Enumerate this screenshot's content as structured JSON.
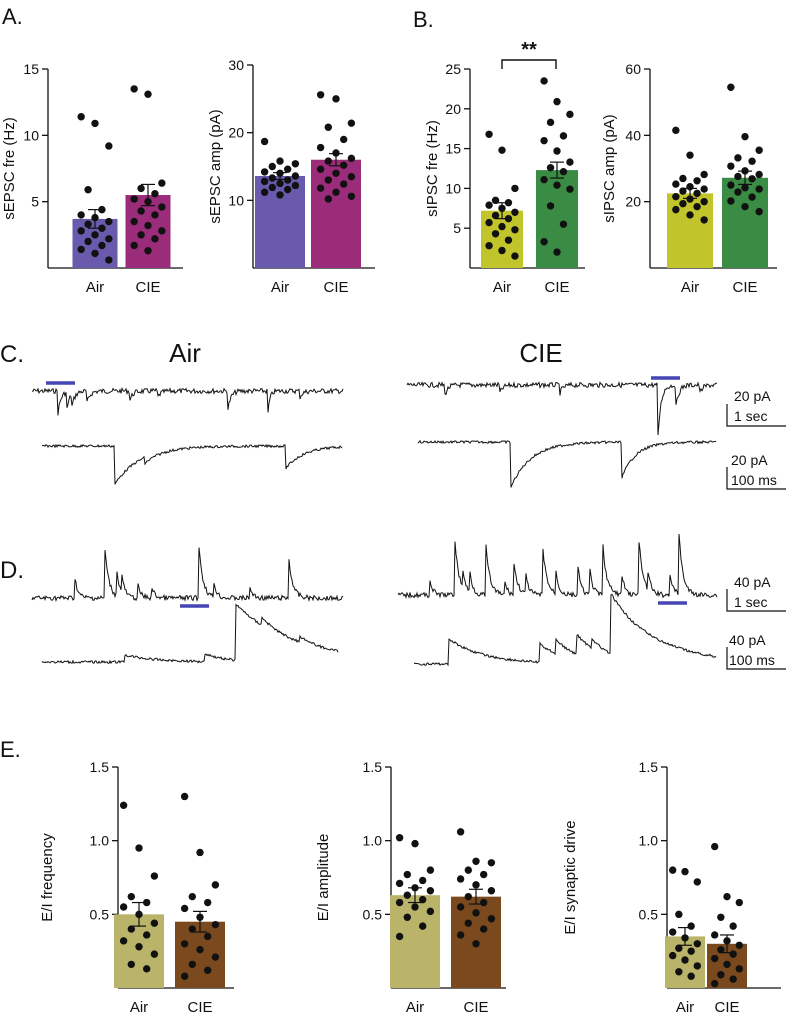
{
  "panel_labels": {
    "a": "A.",
    "b": "B.",
    "c": "C.",
    "d": "D.",
    "e": "E."
  },
  "colors": {
    "air_epsc": "#6a5aad",
    "cie_epsc": "#9b2c7a",
    "air_ipsc": "#c2c42b",
    "cie_ipsc": "#3a8c45",
    "air_ei": "#b9b46a",
    "cie_ei": "#7a4a1e",
    "trace_bar": "#4646b4"
  },
  "significance": {
    "label": "**"
  },
  "chart_data": [
    {
      "id": "a1",
      "type": "bar",
      "categories": [
        "Air",
        "CIE"
      ],
      "ylabel": "sEPSC fre (Hz)",
      "ylim": [
        0,
        15
      ],
      "ticks": [
        "5",
        "10",
        "15"
      ],
      "values": [
        3.7,
        5.5
      ],
      "sem": [
        0.7,
        0.8
      ],
      "points": [
        [
          11.4,
          10.9,
          9.2,
          5.9,
          4.4,
          4.0,
          3.8,
          3.5,
          3.3,
          3.0,
          2.8,
          2.5,
          2.2,
          2.0,
          1.7,
          1.4,
          1.1,
          0.6
        ],
        [
          13.5,
          13.1,
          6.4,
          6.0,
          5.6,
          5.2,
          5.0,
          4.6,
          4.3,
          4.0,
          3.5,
          3.2,
          2.8,
          2.5,
          2.2,
          1.7,
          1.3
        ]
      ]
    },
    {
      "id": "a2",
      "type": "bar",
      "categories": [
        "Air",
        "CIE"
      ],
      "ylabel": "sEPSC amp (pA)",
      "ylim": [
        0,
        30
      ],
      "ticks": [
        "10",
        "20",
        "30"
      ],
      "values": [
        13.6,
        16.0
      ],
      "sem": [
        0.5,
        0.9
      ],
      "points": [
        [
          18.7,
          15.8,
          15.4,
          15.0,
          14.6,
          14.2,
          14.0,
          13.6,
          13.3,
          13.0,
          12.8,
          12.5,
          12.2,
          11.9,
          11.6,
          11.2,
          10.8
        ],
        [
          25.6,
          25.0,
          21.4,
          20.8,
          19.0,
          17.8,
          17.0,
          16.2,
          15.8,
          15.2,
          14.6,
          14.0,
          13.5,
          13.0,
          12.4,
          11.8,
          11.2,
          10.6,
          10.2
        ]
      ]
    },
    {
      "id": "b1",
      "type": "bar",
      "categories": [
        "Air",
        "CIE"
      ],
      "ylabel": "sIPSC fre (Hz)",
      "ylim": [
        0,
        25
      ],
      "ticks": [
        "5",
        "10",
        "15",
        "20",
        "25"
      ],
      "values": [
        7.2,
        12.3
      ],
      "sem": [
        1.0,
        1.0
      ],
      "points": [
        [
          16.8,
          14.8,
          10.0,
          8.5,
          8.2,
          7.9,
          7.5,
          7.0,
          6.6,
          6.2,
          5.7,
          5.2,
          4.8,
          4.3,
          3.5,
          2.8,
          2.2,
          1.5
        ],
        [
          23.5,
          20.9,
          19.3,
          18.3,
          16.6,
          16.0,
          14.7,
          13.3,
          12.6,
          12.1,
          11.1,
          10.4,
          9.9,
          7.8,
          5.5,
          3.3,
          2.0
        ]
      ]
    },
    {
      "id": "b2",
      "type": "bar",
      "categories": [
        "Air",
        "CIE"
      ],
      "ylabel": "sIPSC amp (pA)",
      "ylim": [
        0,
        60
      ],
      "ticks": [
        "20",
        "40",
        "60"
      ],
      "values": [
        22.5,
        27.2
      ],
      "sem": [
        1.5,
        2.0
      ],
      "points": [
        [
          41.5,
          34.0,
          28.2,
          27.0,
          26.3,
          25.3,
          24.5,
          23.8,
          23.2,
          22.5,
          21.5,
          20.8,
          20.0,
          19.4,
          18.5,
          17.6,
          16.0,
          14.5
        ],
        [
          54.5,
          39.6,
          35.5,
          33.2,
          32.2,
          30.7,
          29.3,
          28.2,
          27.6,
          26.9,
          25.0,
          24.2,
          23.8,
          22.9,
          21.4,
          20.2,
          18.5,
          17.0
        ]
      ]
    },
    {
      "id": "e1",
      "type": "bar",
      "categories": [
        "Air",
        "CIE"
      ],
      "ylabel": "E/I frequency",
      "ylim": [
        0,
        1.5
      ],
      "ticks": [
        "0.5",
        "1.0",
        "1.5"
      ],
      "values": [
        0.5,
        0.45
      ],
      "sem": [
        0.08,
        0.07
      ],
      "points": [
        [
          1.24,
          0.95,
          0.76,
          0.62,
          0.58,
          0.55,
          0.5,
          0.44,
          0.4,
          0.36,
          0.32,
          0.28,
          0.23,
          0.16,
          0.13
        ],
        [
          1.3,
          0.92,
          0.7,
          0.62,
          0.58,
          0.54,
          0.48,
          0.43,
          0.4,
          0.35,
          0.3,
          0.26,
          0.21,
          0.16,
          0.12,
          0.08
        ]
      ]
    },
    {
      "id": "e2",
      "type": "bar",
      "categories": [
        "Air",
        "CIE"
      ],
      "ylabel": "E/I amplitude",
      "ylim": [
        0,
        1.5
      ],
      "ticks": [
        "0.5",
        "1.0",
        "1.5"
      ],
      "values": [
        0.63,
        0.62
      ],
      "sem": [
        0.05,
        0.05
      ],
      "points": [
        [
          1.02,
          0.98,
          0.8,
          0.77,
          0.73,
          0.71,
          0.68,
          0.66,
          0.63,
          0.6,
          0.58,
          0.55,
          0.52,
          0.48,
          0.42,
          0.35
        ],
        [
          1.06,
          0.86,
          0.85,
          0.8,
          0.77,
          0.74,
          0.7,
          0.66,
          0.62,
          0.58,
          0.55,
          0.51,
          0.47,
          0.44,
          0.4,
          0.36,
          0.3
        ]
      ]
    },
    {
      "id": "e3",
      "type": "bar",
      "categories": [
        "Air",
        "CIE"
      ],
      "ylabel": "E/I synaptic drive",
      "ylim": [
        0,
        1.5
      ],
      "ticks": [
        "0.5",
        "1.0",
        "1.5"
      ],
      "values": [
        0.35,
        0.3
      ],
      "sem": [
        0.06,
        0.06
      ],
      "points": [
        [
          0.8,
          0.79,
          0.72,
          0.5,
          0.42,
          0.38,
          0.34,
          0.3,
          0.27,
          0.25,
          0.22,
          0.19,
          0.15,
          0.11,
          0.08
        ],
        [
          0.96,
          0.62,
          0.58,
          0.48,
          0.42,
          0.36,
          0.32,
          0.29,
          0.26,
          0.23,
          0.2,
          0.16,
          0.13,
          0.09,
          0.06,
          0.03
        ]
      ]
    }
  ],
  "traces": {
    "c": {
      "left_title": "Air",
      "right_title": "CIE",
      "scale_top": {
        "amp": "20 pA",
        "time": "1 sec"
      },
      "scale_bottom": {
        "amp": "20 pA",
        "time": "100 ms"
      }
    },
    "d": {
      "scale_top": {
        "amp": "40 pA",
        "time": "1 sec"
      },
      "scale_bottom": {
        "amp": "40 pA",
        "time": "100 ms"
      }
    }
  }
}
